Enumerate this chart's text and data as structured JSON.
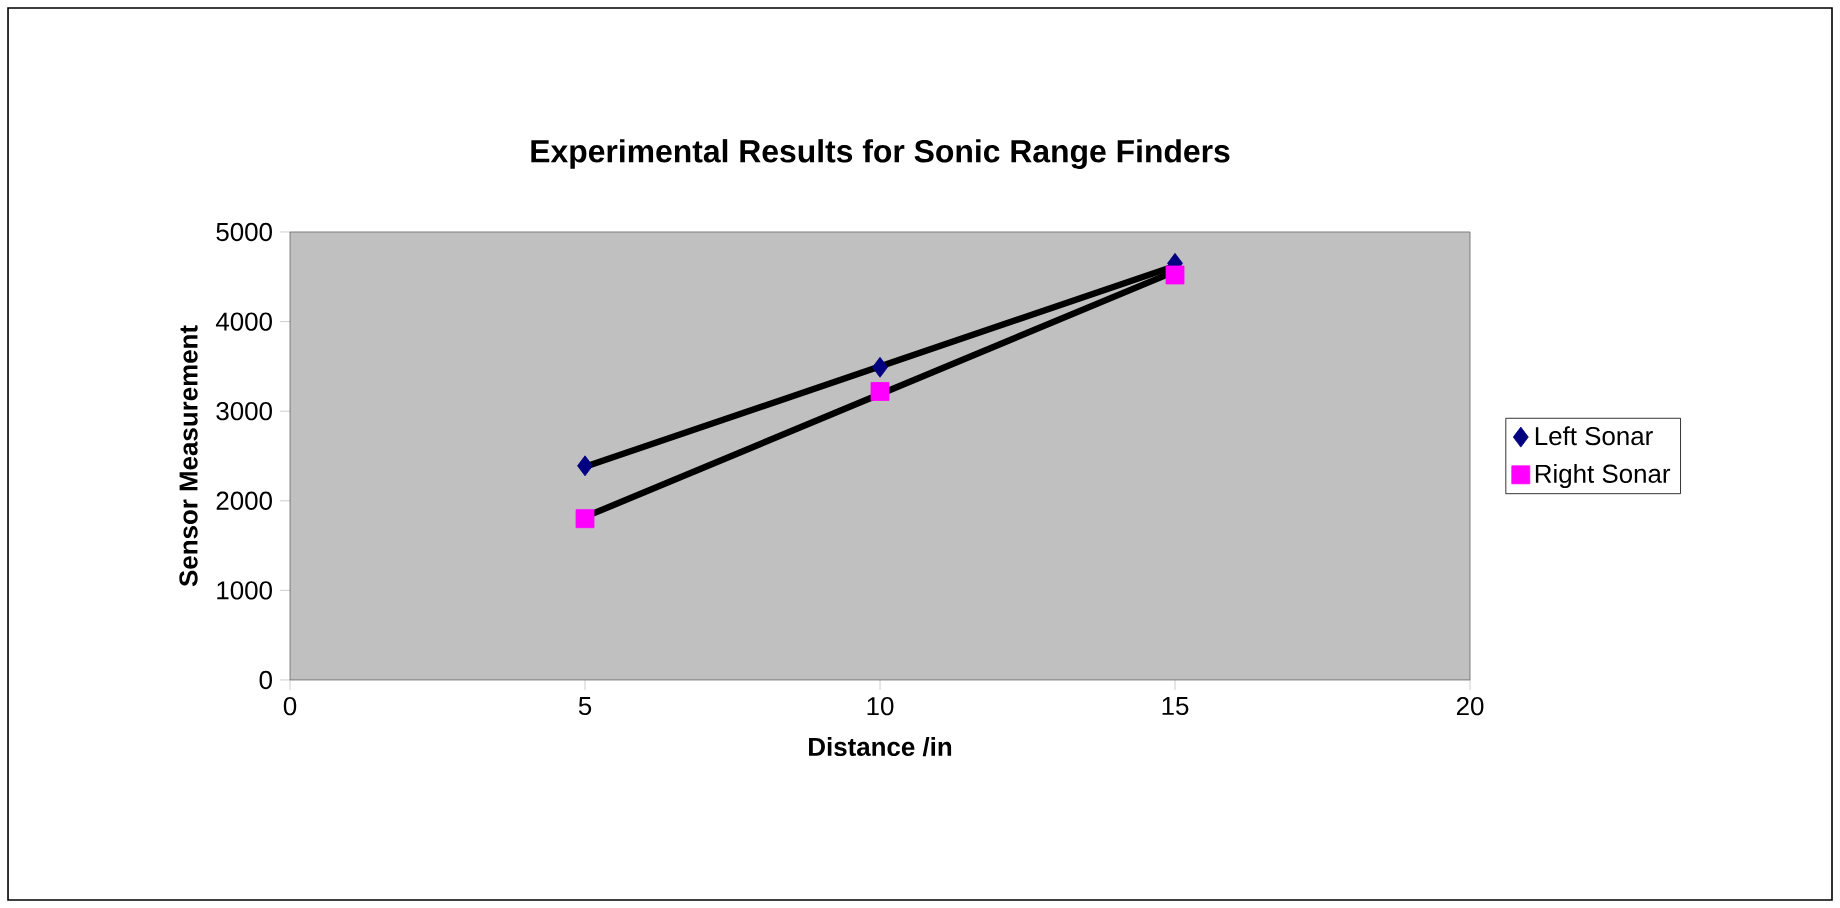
{
  "chart_data": {
    "type": "scatter",
    "title": "Experimental Results for Sonic Range Finders",
    "xlabel": "Distance /in",
    "ylabel": "Sensor Measurement",
    "xlim": [
      0,
      20
    ],
    "xticks": [
      0,
      5,
      10,
      15,
      20
    ],
    "ylim": [
      0,
      5000
    ],
    "yticks": [
      0,
      1000,
      2000,
      3000,
      4000,
      5000
    ],
    "grid": false,
    "legend": "right",
    "series": [
      {
        "name": "Left Sonar",
        "color": "#000080",
        "marker": "diamond",
        "x": [
          5,
          10,
          15
        ],
        "values": [
          2390,
          3490,
          4650
        ]
      },
      {
        "name": "Right Sonar",
        "color": "#ff00ff",
        "marker": "square",
        "x": [
          5,
          10,
          15
        ],
        "values": [
          1800,
          3220,
          4520
        ]
      },
      {
        "type": "line",
        "color": "#000000",
        "marker": "none",
        "x": [
          5,
          15
        ],
        "values": [
          2380,
          4620
        ]
      },
      {
        "type": "line",
        "color": "#000000",
        "marker": "none",
        "x": [
          5,
          15
        ],
        "values": [
          1820,
          4560
        ]
      }
    ]
  }
}
